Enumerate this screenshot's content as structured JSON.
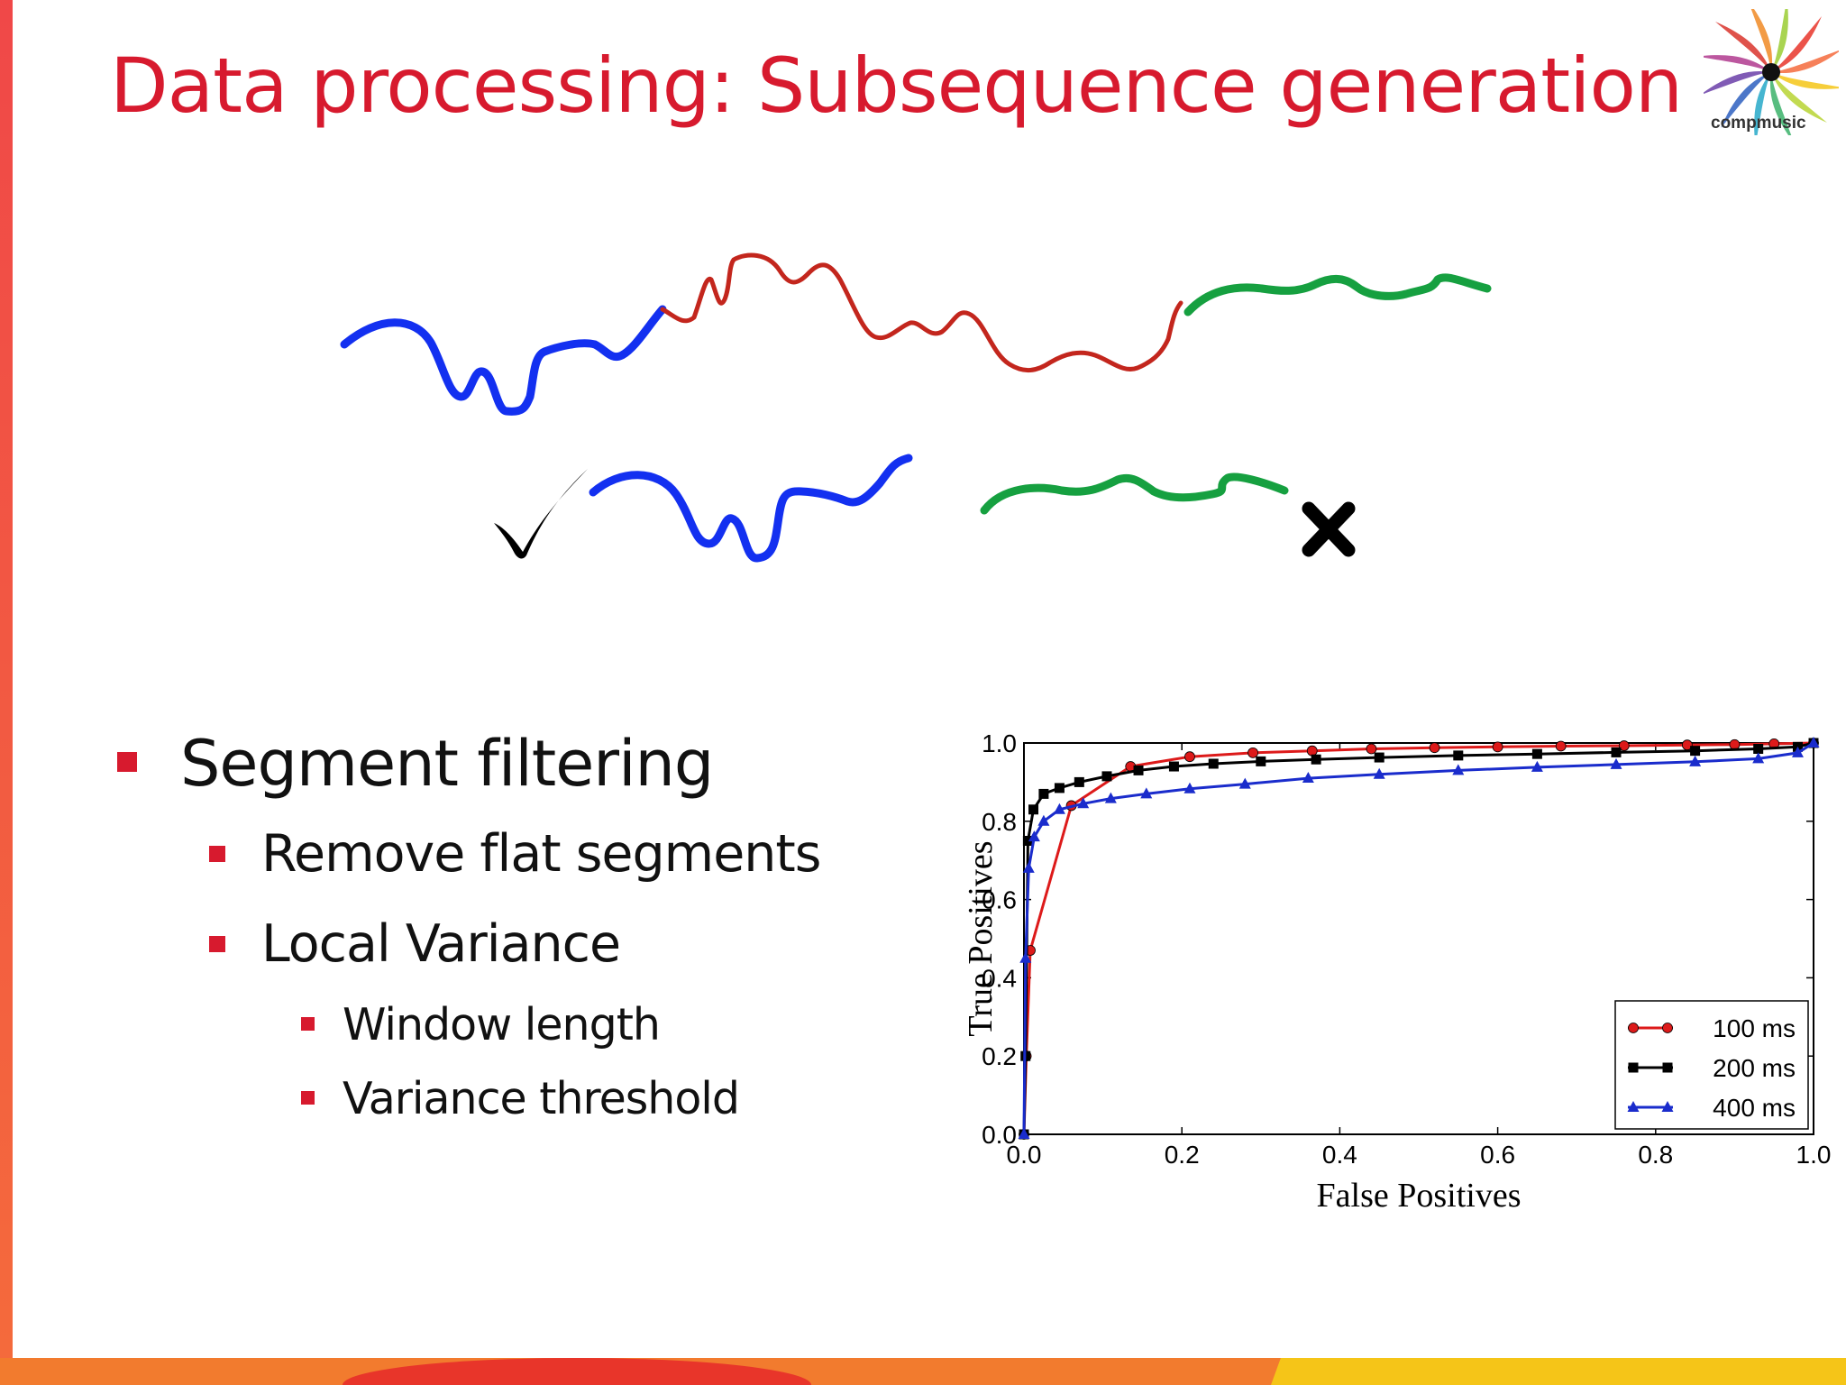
{
  "title": "Data processing: Subsequence generation",
  "logo": {
    "text": "compmusic"
  },
  "illustration": {
    "accepted_icon": "check-mark-icon",
    "rejected_icon": "cross-icon",
    "colors": {
      "kept": "#1330f0",
      "middle": "#c3261d",
      "flat": "#16a040"
    }
  },
  "bullets": [
    {
      "text": "Segment filtering",
      "children": [
        {
          "text": "Remove flat segments"
        },
        {
          "text": "Local Variance",
          "children": [
            {
              "text": "Window length"
            },
            {
              "text": "Variance threshold"
            }
          ]
        }
      ]
    }
  ],
  "accent_color": "#d71a2e",
  "chart_data": {
    "type": "line",
    "xlabel": "False Positives",
    "ylabel": "True Positives",
    "xlim": [
      0,
      1
    ],
    "ylim": [
      0,
      1
    ],
    "xticks": [
      "0.0",
      "0.2",
      "0.4",
      "0.6",
      "0.8",
      "1.0"
    ],
    "yticks": [
      "0.0",
      "0.2",
      "0.4",
      "0.6",
      "0.8",
      "1.0"
    ],
    "legend_position": "bottom-right",
    "series": [
      {
        "name": "100 ms",
        "color": "#dd1a1a",
        "marker": "circle",
        "x": [
          0,
          0.003,
          0.008,
          0.06,
          0.135,
          0.21,
          0.29,
          0.365,
          0.44,
          0.52,
          0.6,
          0.68,
          0.76,
          0.84,
          0.9,
          0.95,
          1.0
        ],
        "y": [
          0.0,
          0.2,
          0.47,
          0.84,
          0.94,
          0.965,
          0.975,
          0.98,
          0.985,
          0.988,
          0.99,
          0.992,
          0.993,
          0.995,
          0.996,
          0.998,
          1.0
        ]
      },
      {
        "name": "200 ms",
        "color": "#000000",
        "marker": "square",
        "x": [
          0,
          0.002,
          0.005,
          0.012,
          0.025,
          0.045,
          0.07,
          0.105,
          0.145,
          0.19,
          0.24,
          0.3,
          0.37,
          0.45,
          0.55,
          0.65,
          0.75,
          0.85,
          0.93,
          0.98,
          1.0
        ],
        "y": [
          0.0,
          0.2,
          0.75,
          0.83,
          0.87,
          0.885,
          0.9,
          0.915,
          0.93,
          0.94,
          0.947,
          0.953,
          0.958,
          0.963,
          0.968,
          0.972,
          0.976,
          0.98,
          0.985,
          0.99,
          1.0
        ]
      },
      {
        "name": "400 ms",
        "color": "#1a2ccc",
        "marker": "triangle",
        "x": [
          0,
          0.002,
          0.006,
          0.013,
          0.025,
          0.045,
          0.075,
          0.11,
          0.155,
          0.21,
          0.28,
          0.36,
          0.45,
          0.55,
          0.65,
          0.75,
          0.85,
          0.93,
          0.98,
          1.0
        ],
        "y": [
          0.0,
          0.45,
          0.68,
          0.76,
          0.8,
          0.83,
          0.845,
          0.858,
          0.87,
          0.883,
          0.895,
          0.91,
          0.92,
          0.93,
          0.938,
          0.945,
          0.952,
          0.96,
          0.975,
          1.0
        ]
      }
    ]
  }
}
